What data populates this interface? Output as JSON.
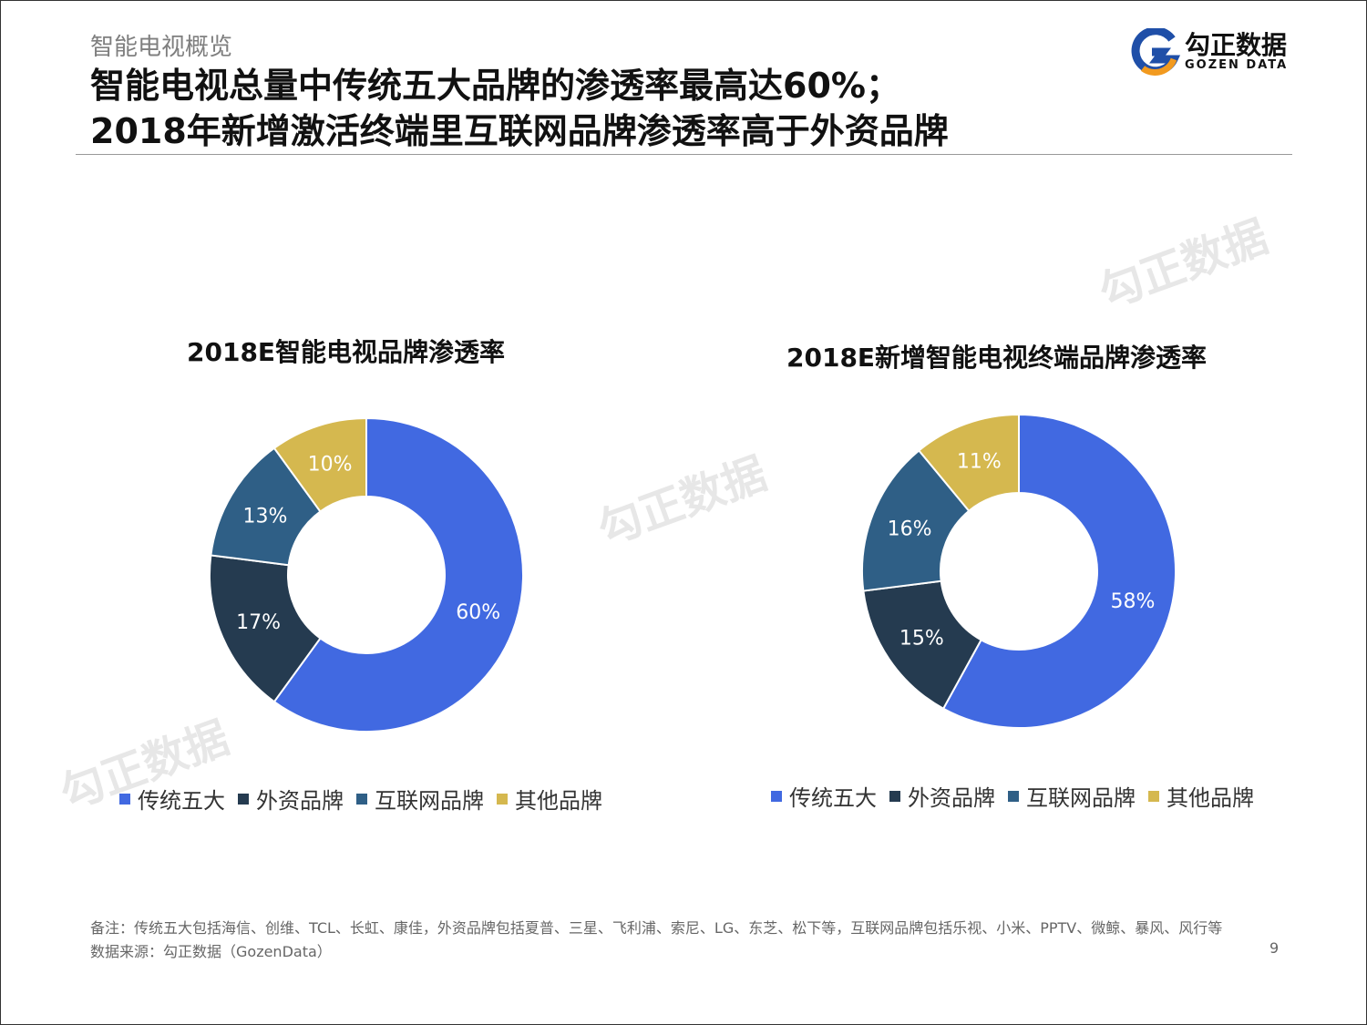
{
  "header": {
    "subtitle": "智能电视概览",
    "title_line1": "智能电视总量中传统五大品牌的渗透率最高达60%；",
    "title_line2": "2018年新增激活终端里互联网品牌渗透率高于外资品牌"
  },
  "logo": {
    "cn": "勾正数据",
    "en": "GOZEN DATA"
  },
  "colors": {
    "传统五大": "#4169E1",
    "外资品牌": "#253B50",
    "互联网品牌": "#2F5F86",
    "其他品牌": "#D5B84F"
  },
  "chart_data": [
    {
      "type": "pie",
      "donut": true,
      "title": "2018E智能电视品牌渗透率",
      "categories": [
        "传统五大",
        "外资品牌",
        "互联网品牌",
        "其他品牌"
      ],
      "values": [
        60,
        17,
        13,
        10
      ],
      "labels": [
        "60%",
        "17%",
        "13%",
        "10%"
      ],
      "legend": "bottom"
    },
    {
      "type": "pie",
      "donut": true,
      "title": "2018E新增智能电视终端品牌渗透率",
      "categories": [
        "传统五大",
        "外资品牌",
        "互联网品牌",
        "其他品牌"
      ],
      "values": [
        58,
        15,
        16,
        11
      ],
      "labels": [
        "58%",
        "15%",
        "16%",
        "11%"
      ],
      "legend": "bottom"
    }
  ],
  "footer": {
    "note": "备注：传统五大包括海信、创维、TCL、长虹、康佳，外资品牌包括夏普、三星、飞利浦、索尼、LG、东芝、松下等，互联网品牌包括乐视、小米、PPTV、微鲸、暴风、风行等",
    "source": "数据来源：勾正数据（GozenData）",
    "page": "9"
  }
}
